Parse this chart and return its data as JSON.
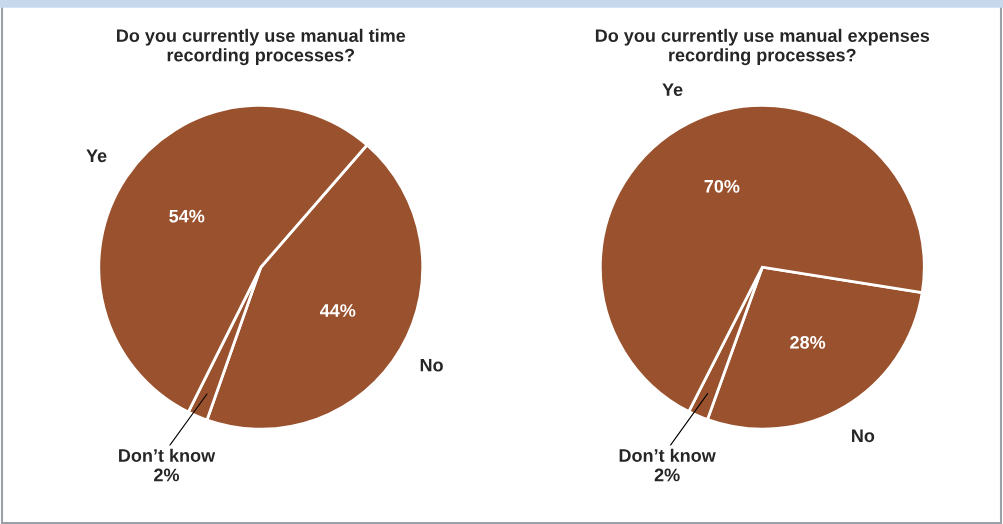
{
  "chart_data": [
    {
      "type": "pie",
      "title": "Do you currently use manual time\nrecording processes?",
      "categories": [
        "No",
        "Don’t know",
        "Ye"
      ],
      "values": [
        44,
        2,
        54
      ],
      "value_labels": [
        "44%",
        "2%",
        "54%"
      ],
      "colors": [
        "#9a522e",
        "#9a522e",
        "#9a522e"
      ]
    },
    {
      "type": "pie",
      "title": "Do you currently use manual expenses\nrecording processes?",
      "categories": [
        "No",
        "Don’t know",
        "Ye"
      ],
      "values": [
        28,
        2,
        70
      ],
      "value_labels": [
        "28%",
        "2%",
        "70%"
      ],
      "colors": [
        "#9a522e",
        "#9a522e",
        "#9a522e"
      ]
    }
  ]
}
